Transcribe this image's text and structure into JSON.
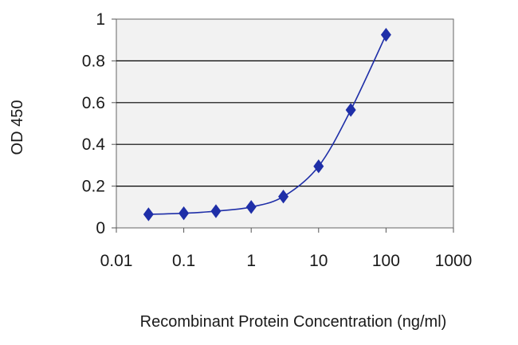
{
  "chart_data": {
    "type": "line",
    "title": "",
    "xlabel": "Recombinant Protein Concentration (ng/ml)",
    "ylabel": "OD 450",
    "xscale": "log",
    "xlim": [
      0.01,
      1000
    ],
    "ylim": [
      0,
      1
    ],
    "x_ticks": [
      "0.01",
      "0.1",
      "1",
      "10",
      "100",
      "1000"
    ],
    "y_ticks": [
      "0",
      "0.2",
      "0.4",
      "0.6",
      "0.8",
      "1"
    ],
    "grid": "horizontal",
    "marker": "diamond",
    "colors": {
      "series": "#1f2fa8",
      "grid": "#000000",
      "plot_bg": "#f2f2f2"
    },
    "series": [
      {
        "x": [
          0.03,
          0.1,
          0.3,
          1,
          3,
          10,
          30,
          100
        ],
        "y": [
          0.065,
          0.07,
          0.08,
          0.1,
          0.15,
          0.295,
          0.565,
          0.925
        ]
      }
    ]
  }
}
